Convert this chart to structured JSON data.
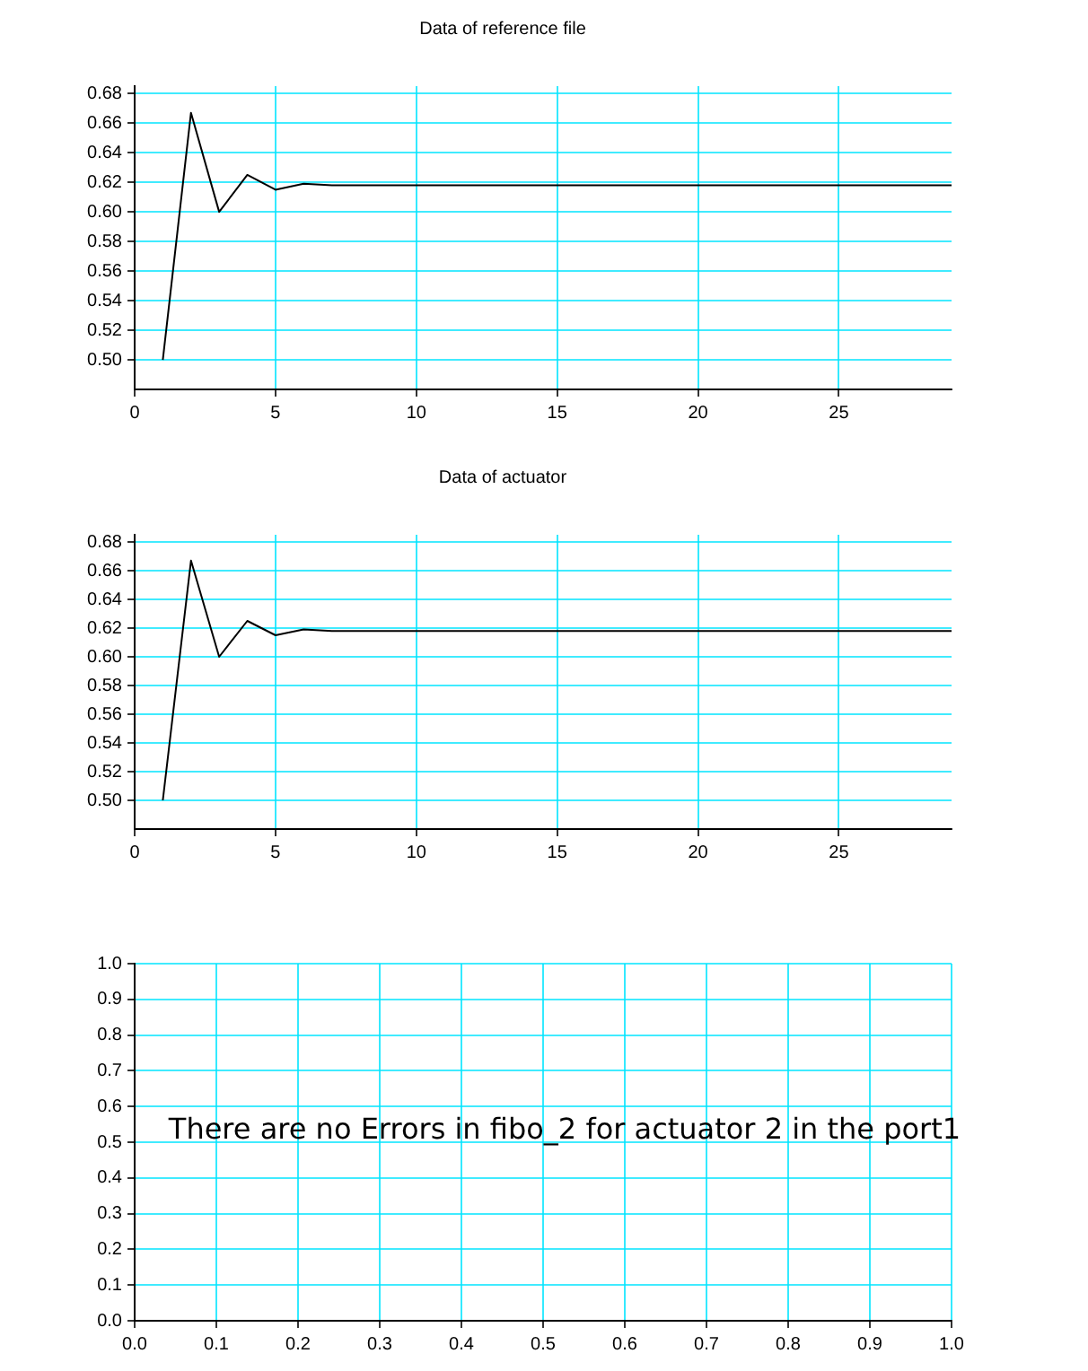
{
  "chart_data": [
    {
      "type": "line",
      "title": "Data of reference file",
      "x": [
        1,
        2,
        3,
        4,
        5,
        6,
        7,
        8,
        9,
        10,
        11,
        12,
        13,
        14,
        15,
        16,
        17,
        18,
        19,
        20,
        21,
        22,
        23,
        24,
        25,
        26,
        27,
        28,
        29
      ],
      "series": [
        {
          "color": "#000000",
          "values": [
            0.5,
            0.667,
            0.6,
            0.625,
            0.615,
            0.619,
            0.618,
            0.618,
            0.618,
            0.618,
            0.618,
            0.618,
            0.618,
            0.618,
            0.618,
            0.618,
            0.618,
            0.618,
            0.618,
            0.618,
            0.618,
            0.618,
            0.618,
            0.618,
            0.618,
            0.618,
            0.618,
            0.618,
            0.618
          ]
        }
      ],
      "xlim": [
        0,
        29
      ],
      "xticks": [
        0,
        5,
        10,
        15,
        20,
        25
      ],
      "ylim": [
        0.48,
        0.685
      ],
      "yticks": [
        {
          "value": 0.5,
          "label": "0.50"
        },
        {
          "value": 0.52,
          "label": "0.52"
        },
        {
          "value": 0.54,
          "label": "0.54"
        },
        {
          "value": 0.56,
          "label": "0.56"
        },
        {
          "value": 0.58,
          "label": "0.58"
        },
        {
          "value": 0.6,
          "label": "0.60"
        },
        {
          "value": 0.62,
          "label": "0.62"
        },
        {
          "value": 0.64,
          "label": "0.64"
        },
        {
          "value": 0.66,
          "label": "0.66"
        },
        {
          "value": 0.68,
          "label": "0.68"
        }
      ],
      "grid": true,
      "legend": false
    },
    {
      "type": "line",
      "title": "Data of actuator",
      "x": [
        1,
        2,
        3,
        4,
        5,
        6,
        7,
        8,
        9,
        10,
        11,
        12,
        13,
        14,
        15,
        16,
        17,
        18,
        19,
        20,
        21,
        22,
        23,
        24,
        25,
        26,
        27,
        28,
        29
      ],
      "series": [
        {
          "color": "#000000",
          "values": [
            0.5,
            0.667,
            0.6,
            0.625,
            0.615,
            0.619,
            0.618,
            0.618,
            0.618,
            0.618,
            0.618,
            0.618,
            0.618,
            0.618,
            0.618,
            0.618,
            0.618,
            0.618,
            0.618,
            0.618,
            0.618,
            0.618,
            0.618,
            0.618,
            0.618,
            0.618,
            0.618,
            0.618,
            0.618
          ]
        }
      ],
      "xlim": [
        0,
        29
      ],
      "xticks": [
        0,
        5,
        10,
        15,
        20,
        25
      ],
      "ylim": [
        0.48,
        0.685
      ],
      "yticks": [
        {
          "value": 0.5,
          "label": "0.50"
        },
        {
          "value": 0.52,
          "label": "0.52"
        },
        {
          "value": 0.54,
          "label": "0.54"
        },
        {
          "value": 0.56,
          "label": "0.56"
        },
        {
          "value": 0.58,
          "label": "0.58"
        },
        {
          "value": 0.6,
          "label": "0.60"
        },
        {
          "value": 0.62,
          "label": "0.62"
        },
        {
          "value": 0.64,
          "label": "0.64"
        },
        {
          "value": 0.66,
          "label": "0.66"
        },
        {
          "value": 0.68,
          "label": "0.68"
        }
      ],
      "grid": true,
      "legend": false
    },
    {
      "type": "line",
      "annotations": [
        "There are no Errors in fibo_2 for actuator 2 in the port1"
      ],
      "xlim": [
        0,
        1
      ],
      "xticks": [
        {
          "value": 0,
          "label": "0.0"
        },
        {
          "value": 0.1,
          "label": "0.1"
        },
        {
          "value": 0.2,
          "label": "0.2"
        },
        {
          "value": 0.3,
          "label": "0.3"
        },
        {
          "value": 0.4,
          "label": "0.4"
        },
        {
          "value": 0.5,
          "label": "0.5"
        },
        {
          "value": 0.6,
          "label": "0.6"
        },
        {
          "value": 0.7,
          "label": "0.7"
        },
        {
          "value": 0.8,
          "label": "0.8"
        },
        {
          "value": 0.9,
          "label": "0.9"
        },
        {
          "value": 1,
          "label": "1.0"
        }
      ],
      "ylim": [
        0,
        1
      ],
      "yticks": [
        {
          "value": 0,
          "label": "0.0"
        },
        {
          "value": 0.1,
          "label": "0.1"
        },
        {
          "value": 0.2,
          "label": "0.2"
        },
        {
          "value": 0.3,
          "label": "0.3"
        },
        {
          "value": 0.4,
          "label": "0.4"
        },
        {
          "value": 0.5,
          "label": "0.5"
        },
        {
          "value": 0.6,
          "label": "0.6"
        },
        {
          "value": 0.7,
          "label": "0.7"
        },
        {
          "value": 0.8,
          "label": "0.8"
        },
        {
          "value": 0.9,
          "label": "0.9"
        },
        {
          "value": 1,
          "label": "1.0"
        }
      ],
      "grid": true,
      "legend": false
    }
  ]
}
